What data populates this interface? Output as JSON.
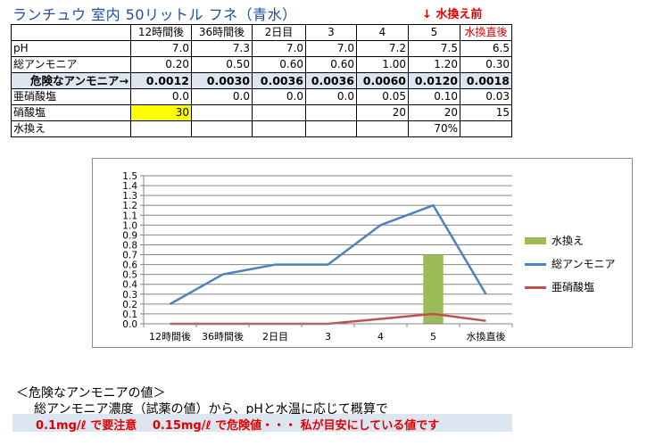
{
  "title": "ランチュウ 室内 50リットル フネ（青水）",
  "top_note": "↓ 水換え前",
  "table": {
    "header": [
      "",
      "12時間後",
      "36時間後",
      "2日目",
      "3",
      "4",
      "5",
      "水換直後"
    ],
    "rows": [
      {
        "label": "pH",
        "cells": [
          "7.0",
          "7.3",
          "7.0",
          "7.0",
          "7.2",
          "7.5",
          "6.5"
        ]
      },
      {
        "label": "総アンモニア",
        "cells": [
          "0.20",
          "0.50",
          "0.60",
          "0.60",
          "1.00",
          "1.20",
          "0.30"
        ]
      },
      {
        "label": "危険なアンモニア→",
        "cells": [
          "0.0012",
          "0.0030",
          "0.0036",
          "0.0036",
          "0.0060",
          "0.0120",
          "0.0018"
        ]
      },
      {
        "label": "亜硝酸塩",
        "cells": [
          "0.0",
          "0.0",
          "0.0",
          "0.0",
          "0.05",
          "0.10",
          "0.03"
        ]
      },
      {
        "label": "硝酸塩",
        "cells": [
          "30",
          "",
          "",
          "",
          "20",
          "20",
          "15"
        ]
      },
      {
        "label": "水換え",
        "cells": [
          "",
          "",
          "",
          "",
          "",
          "70%",
          ""
        ]
      }
    ]
  },
  "chart_data": {
    "type": "line",
    "categories": [
      "12時間後",
      "36時間後",
      "2日目",
      "3",
      "4",
      "5",
      "水換直後"
    ],
    "ylim": [
      0,
      1.5
    ],
    "yticks": [
      "0.0",
      "0.1",
      "0.2",
      "0.3",
      "0.4",
      "0.5",
      "0.6",
      "0.7",
      "0.8",
      "0.9",
      "1.0",
      "1.1",
      "1.2",
      "1.3",
      "1.4",
      "1.5"
    ],
    "grid": true,
    "legend_position": "right",
    "series": [
      {
        "name": "水換え",
        "type": "bar",
        "color": "#9bbb59",
        "values": [
          null,
          null,
          null,
          null,
          null,
          0.7,
          null
        ]
      },
      {
        "name": "総アンモニア",
        "type": "line",
        "color": "#4f81bd",
        "values": [
          0.2,
          0.5,
          0.6,
          0.6,
          1.0,
          1.2,
          0.3
        ]
      },
      {
        "name": "亜硝酸塩",
        "type": "line",
        "color": "#c0504d",
        "values": [
          0.0,
          0.0,
          0.0,
          0.0,
          0.05,
          0.1,
          0.03
        ]
      }
    ]
  },
  "footer": {
    "line1": "＜危険なアンモニアの値＞",
    "line2": "総アンモニア濃度（試薬の値）から、pHと水温に応じて概算で",
    "line3": "0.1mg/ℓ で要注意　 0.15mg/ℓ で危険値・・・ 私が目安にしている値です"
  }
}
